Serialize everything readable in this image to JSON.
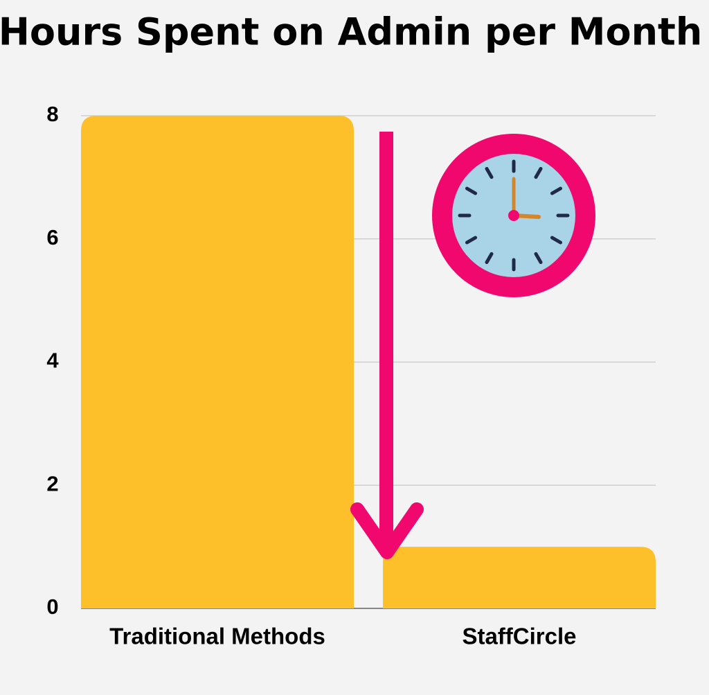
{
  "chart_data": {
    "type": "bar",
    "title": "Hours Spent on Admin per Month",
    "categories": [
      "Traditional Methods",
      "StaffCircle"
    ],
    "values": [
      8,
      1
    ],
    "color": "#fdc02a",
    "ylim": [
      0,
      8
    ],
    "yticks": [
      0,
      2,
      4,
      6,
      8
    ],
    "grid": true
  }
}
